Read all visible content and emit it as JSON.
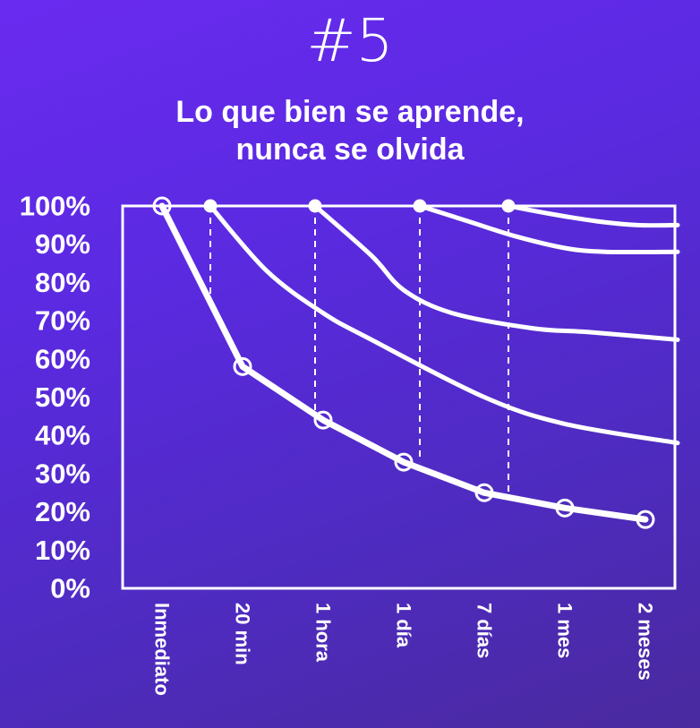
{
  "header": {
    "badge": "#5",
    "title_line1": "Lo que bien se aprende,",
    "title_line2": "nunca se olvida"
  },
  "colors": {
    "background": "#5a2ae0",
    "foreground": "#ffffff"
  },
  "chart_data": {
    "type": "line",
    "title": "",
    "xlabel": "",
    "ylabel": "",
    "categories": [
      "Inmediato",
      "20 min",
      "1 hora",
      "1 día",
      "7 días",
      "1 mes",
      "2 meses"
    ],
    "ytick_labels": [
      "100%",
      "90%",
      "80%",
      "70%",
      "60%",
      "50%",
      "40%",
      "30%",
      "20%",
      "10%",
      "0%"
    ],
    "ylim": [
      0,
      100
    ],
    "grid": false,
    "legend": "none",
    "series": [
      {
        "start": 0,
        "x": [
          0,
          1,
          2,
          3,
          4,
          5,
          6
        ],
        "values": [
          100,
          58,
          44,
          33,
          25,
          21,
          18
        ],
        "markers": true
      },
      {
        "start": 0.6,
        "x": [
          0.6,
          1.3,
          2,
          2.6,
          4,
          5,
          6.4
        ],
        "values": [
          100,
          83,
          72,
          65,
          50,
          43,
          38
        ],
        "markers": false
      },
      {
        "start": 1.9,
        "x": [
          1.9,
          2.6,
          3,
          3.6,
          4.6,
          5.3,
          6.4
        ],
        "values": [
          100,
          87,
          78,
          72,
          68,
          67,
          65
        ],
        "markers": false
      },
      {
        "start": 3.2,
        "x": [
          3.2,
          3.8,
          4.4,
          5,
          5.5,
          6.4
        ],
        "values": [
          100,
          96,
          92,
          89,
          88,
          88
        ],
        "markers": false
      },
      {
        "start": 4.3,
        "x": [
          4.3,
          4.8,
          5.4,
          5.9,
          6.4
        ],
        "values": [
          100,
          98,
          96,
          95,
          95
        ],
        "markers": false
      }
    ],
    "review_markers": [
      {
        "x": 0.6,
        "to": 76
      },
      {
        "x": 1.9,
        "to": 44
      },
      {
        "x": 3.2,
        "to": 33
      },
      {
        "x": 4.3,
        "to": 25
      }
    ]
  }
}
